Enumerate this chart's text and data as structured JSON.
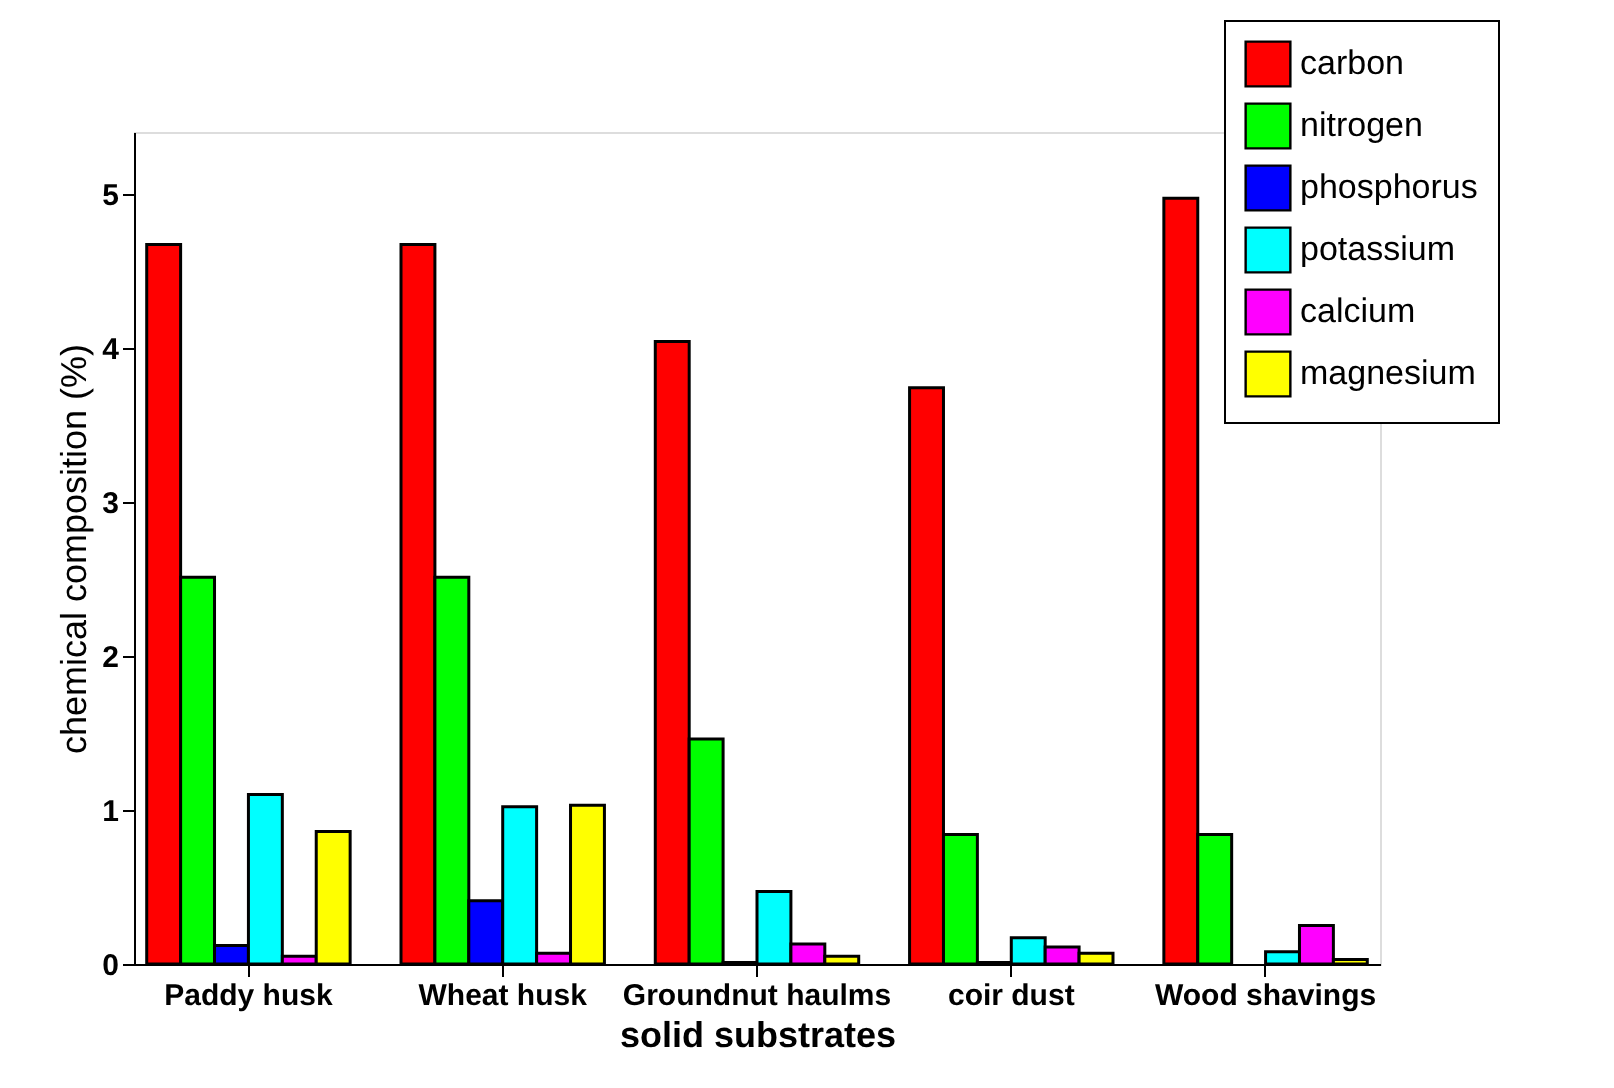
{
  "chart_data": {
    "type": "bar",
    "xlabel": "solid substrates",
    "ylabel": "chemical composition (%)",
    "categories": [
      "Paddy  husk",
      "Wheat husk",
      "Groundnut haulms",
      "coir dust",
      "Wood shavings"
    ],
    "series": [
      {
        "name": "carbon",
        "color": "#ff0000",
        "values": [
          4.67,
          4.67,
          4.04,
          3.74,
          4.97
        ]
      },
      {
        "name": "nitrogen",
        "color": "#00ff00",
        "values": [
          2.51,
          2.51,
          1.46,
          0.84,
          0.84
        ]
      },
      {
        "name": "phosphorus",
        "color": "#0000ff",
        "values": [
          0.12,
          0.41,
          0.01,
          0.01,
          null
        ]
      },
      {
        "name": "potassium",
        "color": "#00ffff",
        "values": [
          1.1,
          1.02,
          0.47,
          0.17,
          0.08
        ]
      },
      {
        "name": "calcium",
        "color": "#ff00ff",
        "values": [
          0.05,
          0.07,
          0.13,
          0.11,
          0.25
        ]
      },
      {
        "name": "magnesium",
        "color": "#ffff00",
        "values": [
          0.86,
          1.03,
          0.05,
          0.07,
          0.03
        ]
      }
    ],
    "ylim": [
      0,
      5.4
    ],
    "yticks": [
      0,
      1,
      2,
      3,
      4,
      5
    ],
    "grid": false,
    "legend": "top right"
  }
}
